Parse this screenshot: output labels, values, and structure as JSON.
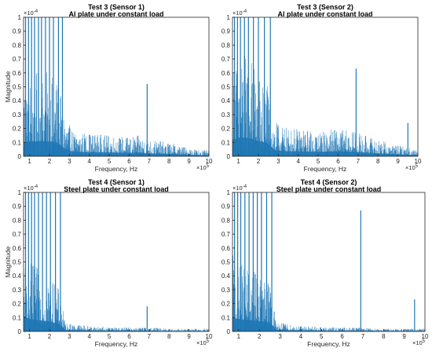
{
  "chart_data": [
    {
      "type": "line",
      "title": "Test 3 (Sensor 1)",
      "subtitle": "Al plate under constant load",
      "xlabel": "Frequency, Hz",
      "ylabel": "Magnitude",
      "x_multiplier": "×10^5",
      "y_multiplier": "×10^-4",
      "xlim": [
        0.7,
        10
      ],
      "ylim": [
        0,
        1
      ],
      "xticks": [
        "1",
        "2",
        "3",
        "4",
        "5",
        "6",
        "7",
        "8",
        "9",
        "10"
      ],
      "yticks": [
        "0",
        "0.1",
        "0.2",
        "0.3",
        "0.4",
        "0.5",
        "0.6",
        "0.7",
        "0.8",
        "0.9",
        "1"
      ],
      "grid": false,
      "series": [
        {
          "color": "#1f77b4",
          "envelope_x": [
            0.7,
            1.0,
            1.3,
            1.6,
            2.0,
            2.4,
            2.7,
            2.8,
            3.2,
            4.0,
            5.0,
            6.0,
            6.5,
            7.0,
            8.0,
            9.0,
            10.0
          ],
          "envelope_y": [
            0.55,
            0.6,
            0.6,
            0.62,
            0.6,
            0.55,
            0.35,
            0.28,
            0.18,
            0.17,
            0.15,
            0.14,
            0.15,
            0.12,
            0.1,
            0.06,
            0.04
          ],
          "spikes_x": [
            0.8,
            0.95,
            1.1,
            1.25,
            1.45,
            1.6,
            1.8,
            2.0,
            2.2,
            2.45,
            2.65,
            6.9
          ],
          "spikes_y": [
            1.0,
            1.0,
            1.0,
            1.0,
            1.0,
            1.0,
            1.0,
            1.0,
            1.0,
            1.0,
            1.0,
            0.52
          ]
        }
      ]
    },
    {
      "type": "line",
      "title": "Test 3 (Sensor 2)",
      "subtitle": "Al plate under constant load",
      "xlabel": "Frequency, Hz",
      "ylabel": "",
      "x_multiplier": "×10^5",
      "y_multiplier": "×10^-4",
      "xlim": [
        0.7,
        10
      ],
      "ylim": [
        0,
        1
      ],
      "xticks": [
        "1",
        "2",
        "3",
        "4",
        "5",
        "6",
        "7",
        "8",
        "9",
        "10"
      ],
      "yticks": [
        "0",
        "0.1",
        "0.2",
        "0.3",
        "0.4",
        "0.5",
        "0.6",
        "0.7",
        "0.8",
        "0.9",
        "1"
      ],
      "grid": false,
      "series": [
        {
          "color": "#1f77b4",
          "envelope_x": [
            0.7,
            1.0,
            1.3,
            1.6,
            2.0,
            2.4,
            2.7,
            2.8,
            3.5,
            4.0,
            5.0,
            6.0,
            7.0,
            8.0,
            9.0,
            10.0
          ],
          "envelope_y": [
            0.65,
            0.75,
            0.75,
            0.72,
            0.6,
            0.55,
            0.35,
            0.25,
            0.2,
            0.2,
            0.18,
            0.2,
            0.17,
            0.12,
            0.08,
            0.05
          ],
          "spikes_x": [
            0.8,
            0.95,
            1.1,
            1.3,
            1.5,
            1.75,
            2.0,
            2.3,
            2.6,
            6.9,
            9.5
          ],
          "spikes_y": [
            1.0,
            1.0,
            1.0,
            1.0,
            1.0,
            1.0,
            1.0,
            1.0,
            1.0,
            0.63,
            0.24
          ]
        }
      ]
    },
    {
      "type": "line",
      "title": "Test 4 (Sensor 1)",
      "subtitle": "Steel plate under constant load",
      "xlabel": "Frequency, Hz",
      "ylabel": "Magnitude",
      "x_multiplier": "×10^5",
      "y_multiplier": "×10^-4",
      "xlim": [
        0.7,
        10
      ],
      "ylim": [
        0,
        1
      ],
      "xticks": [
        "1",
        "2",
        "3",
        "4",
        "5",
        "6",
        "7",
        "8",
        "9",
        "10"
      ],
      "yticks": [
        "0",
        "0.1",
        "0.2",
        "0.3",
        "0.4",
        "0.5",
        "0.6",
        "0.7",
        "0.8",
        "0.9",
        "1"
      ],
      "grid": false,
      "series": [
        {
          "color": "#1f77b4",
          "envelope_x": [
            0.7,
            1.0,
            1.5,
            2.0,
            2.5,
            2.7,
            2.8,
            3.5,
            4.0,
            5.0,
            6.0,
            7.0,
            8.0,
            9.0,
            10.0
          ],
          "envelope_y": [
            0.6,
            0.5,
            0.45,
            0.4,
            0.3,
            0.15,
            0.06,
            0.05,
            0.04,
            0.03,
            0.03,
            0.03,
            0.02,
            0.02,
            0.02
          ],
          "spikes_x": [
            0.8,
            0.95,
            1.1,
            1.25,
            1.45,
            1.65,
            1.85,
            2.05,
            2.3,
            2.55,
            6.9
          ],
          "spikes_y": [
            1.0,
            1.0,
            1.0,
            1.0,
            1.0,
            1.0,
            1.0,
            1.0,
            1.0,
            1.0,
            0.18
          ]
        }
      ]
    },
    {
      "type": "line",
      "title": "Test 4 (Sensor 2)",
      "subtitle": "Steel plate under constant load",
      "xlabel": "Frequency, Hz",
      "ylabel": "",
      "x_multiplier": "×10^5",
      "y_multiplier": "×10^-4",
      "xlim": [
        0.7,
        10
      ],
      "ylim": [
        0,
        1
      ],
      "xticks": [
        "1",
        "2",
        "3",
        "4",
        "5",
        "6",
        "7",
        "8",
        "9",
        "10"
      ],
      "yticks": [
        "0",
        "0.1",
        "0.2",
        "0.3",
        "0.4",
        "0.5",
        "0.6",
        "0.7",
        "0.8",
        "0.9",
        "1"
      ],
      "grid": false,
      "series": [
        {
          "color": "#1f77b4",
          "envelope_x": [
            0.7,
            1.0,
            1.5,
            2.0,
            2.5,
            2.7,
            2.8,
            3.5,
            4.0,
            5.0,
            6.0,
            7.0,
            8.0,
            9.0,
            10.0
          ],
          "envelope_y": [
            0.55,
            0.5,
            0.45,
            0.42,
            0.35,
            0.2,
            0.07,
            0.05,
            0.04,
            0.03,
            0.03,
            0.03,
            0.02,
            0.02,
            0.02
          ],
          "spikes_x": [
            0.8,
            0.95,
            1.1,
            1.3,
            1.5,
            1.7,
            1.9,
            2.1,
            2.35,
            2.6,
            6.9,
            9.5
          ],
          "spikes_y": [
            1.0,
            1.0,
            1.0,
            1.0,
            1.0,
            1.0,
            1.0,
            1.0,
            1.0,
            1.0,
            0.87,
            0.23
          ]
        }
      ]
    }
  ]
}
